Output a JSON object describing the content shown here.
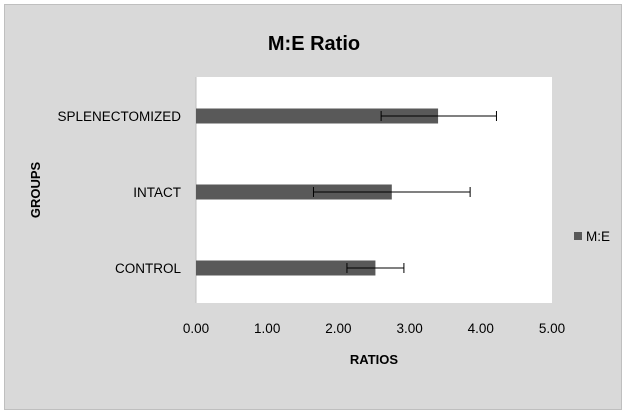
{
  "chart_data": {
    "type": "bar",
    "orientation": "horizontal",
    "title": "M:E Ratio",
    "xlabel": "RATIOS",
    "ylabel": "GROUPS",
    "categories": [
      "SPLENECTOMIZED",
      "INTACT",
      "CONTROL"
    ],
    "series": [
      {
        "name": "M:E",
        "values": [
          3.4,
          2.75,
          2.52
        ],
        "error_low": [
          2.6,
          1.65,
          2.12
        ],
        "error_high": [
          4.22,
          3.85,
          2.92
        ],
        "color": "#595959"
      }
    ],
    "xlim": [
      0,
      5
    ],
    "xticks": [
      "0.00",
      "1.00",
      "2.00",
      "3.00",
      "4.00",
      "5.00"
    ],
    "grid": false,
    "legend_position": "right",
    "background_color": "#d9d9d9",
    "plot_area_color": "#ffffff"
  }
}
